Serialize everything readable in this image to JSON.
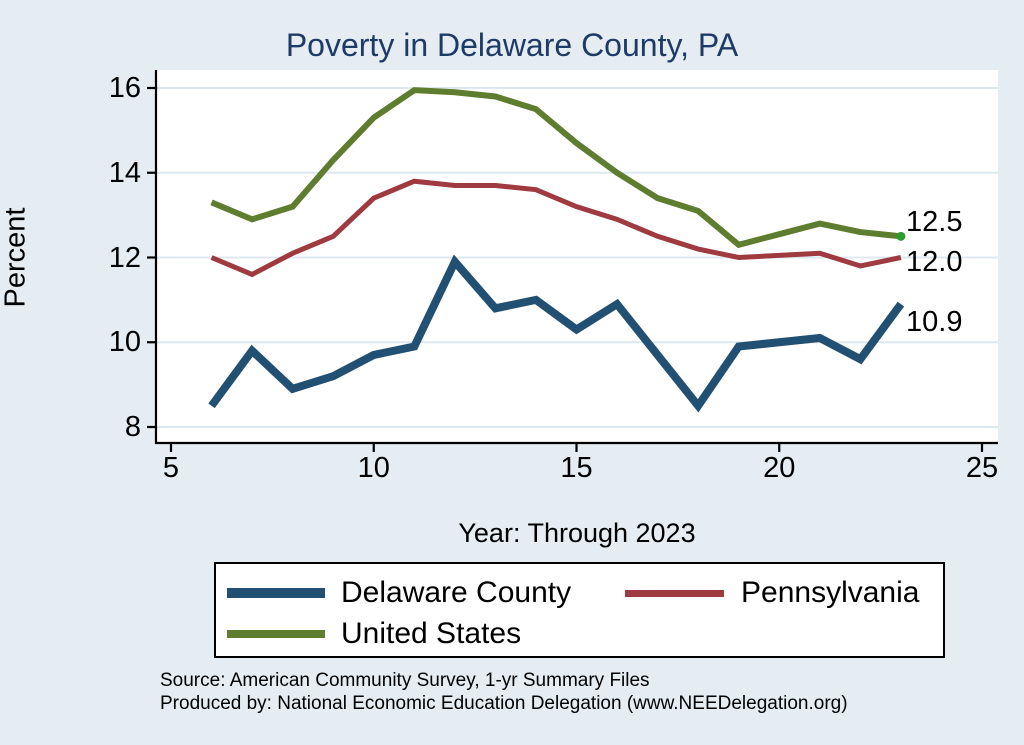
{
  "title": "Poverty in Delaware County, PA",
  "source_lines": {
    "line1": "Source: American Community Survey, 1-yr Summary Files",
    "line2": "Produced by: National Economic Education Delegation (www.NEEDelegation.org)"
  },
  "colors": {
    "background": "#e5edf2",
    "plot_background": "#ffffff",
    "gridline": "#dde9f0",
    "axis": "#000000",
    "title_text": "#1e3a66",
    "delaware_county": "#215073",
    "pennsylvania": "#9e3a40",
    "united_states": "#5e7d2e",
    "end_marker_dot": "#2e9b2e"
  },
  "chart_data": {
    "type": "line",
    "title": "Poverty in Delaware County, PA",
    "xlabel": "Year: Through 2023",
    "ylabel": "Percent",
    "x_ticks": [
      5,
      10,
      15,
      20,
      25
    ],
    "y_ticks": [
      8,
      10,
      12,
      14,
      16
    ],
    "xlim": [
      4.6,
      25.4
    ],
    "ylim": [
      7.6,
      16.4
    ],
    "grid": "horizontal-only",
    "legend_position": "bottom",
    "x": [
      6,
      7,
      8,
      9,
      10,
      11,
      12,
      13,
      14,
      15,
      16,
      17,
      18,
      19,
      20,
      21,
      22,
      23
    ],
    "series": [
      {
        "name": "Delaware County",
        "color": "#215073",
        "line_width": 8,
        "end_label": "10.9",
        "values": [
          8.5,
          9.8,
          8.9,
          9.2,
          9.7,
          9.9,
          11.9,
          10.8,
          11.0,
          10.3,
          10.9,
          9.7,
          8.5,
          9.9,
          10.0,
          10.1,
          9.6,
          10.9
        ]
      },
      {
        "name": "Pennsylvania",
        "color": "#9e3a40",
        "line_width": 5,
        "end_label": "12.0",
        "values": [
          12.0,
          11.6,
          12.1,
          12.5,
          13.4,
          13.8,
          13.7,
          13.7,
          13.6,
          13.2,
          12.9,
          12.5,
          12.2,
          12.0,
          12.05,
          12.1,
          11.8,
          12.0
        ]
      },
      {
        "name": "United States",
        "color": "#5e7d2e",
        "line_width": 6,
        "end_label": "12.5",
        "end_marker": true,
        "values": [
          13.3,
          12.9,
          13.2,
          14.3,
          15.3,
          15.95,
          15.9,
          15.8,
          15.5,
          14.7,
          14.0,
          13.4,
          13.1,
          12.3,
          12.55,
          12.8,
          12.6,
          12.5
        ]
      }
    ]
  }
}
